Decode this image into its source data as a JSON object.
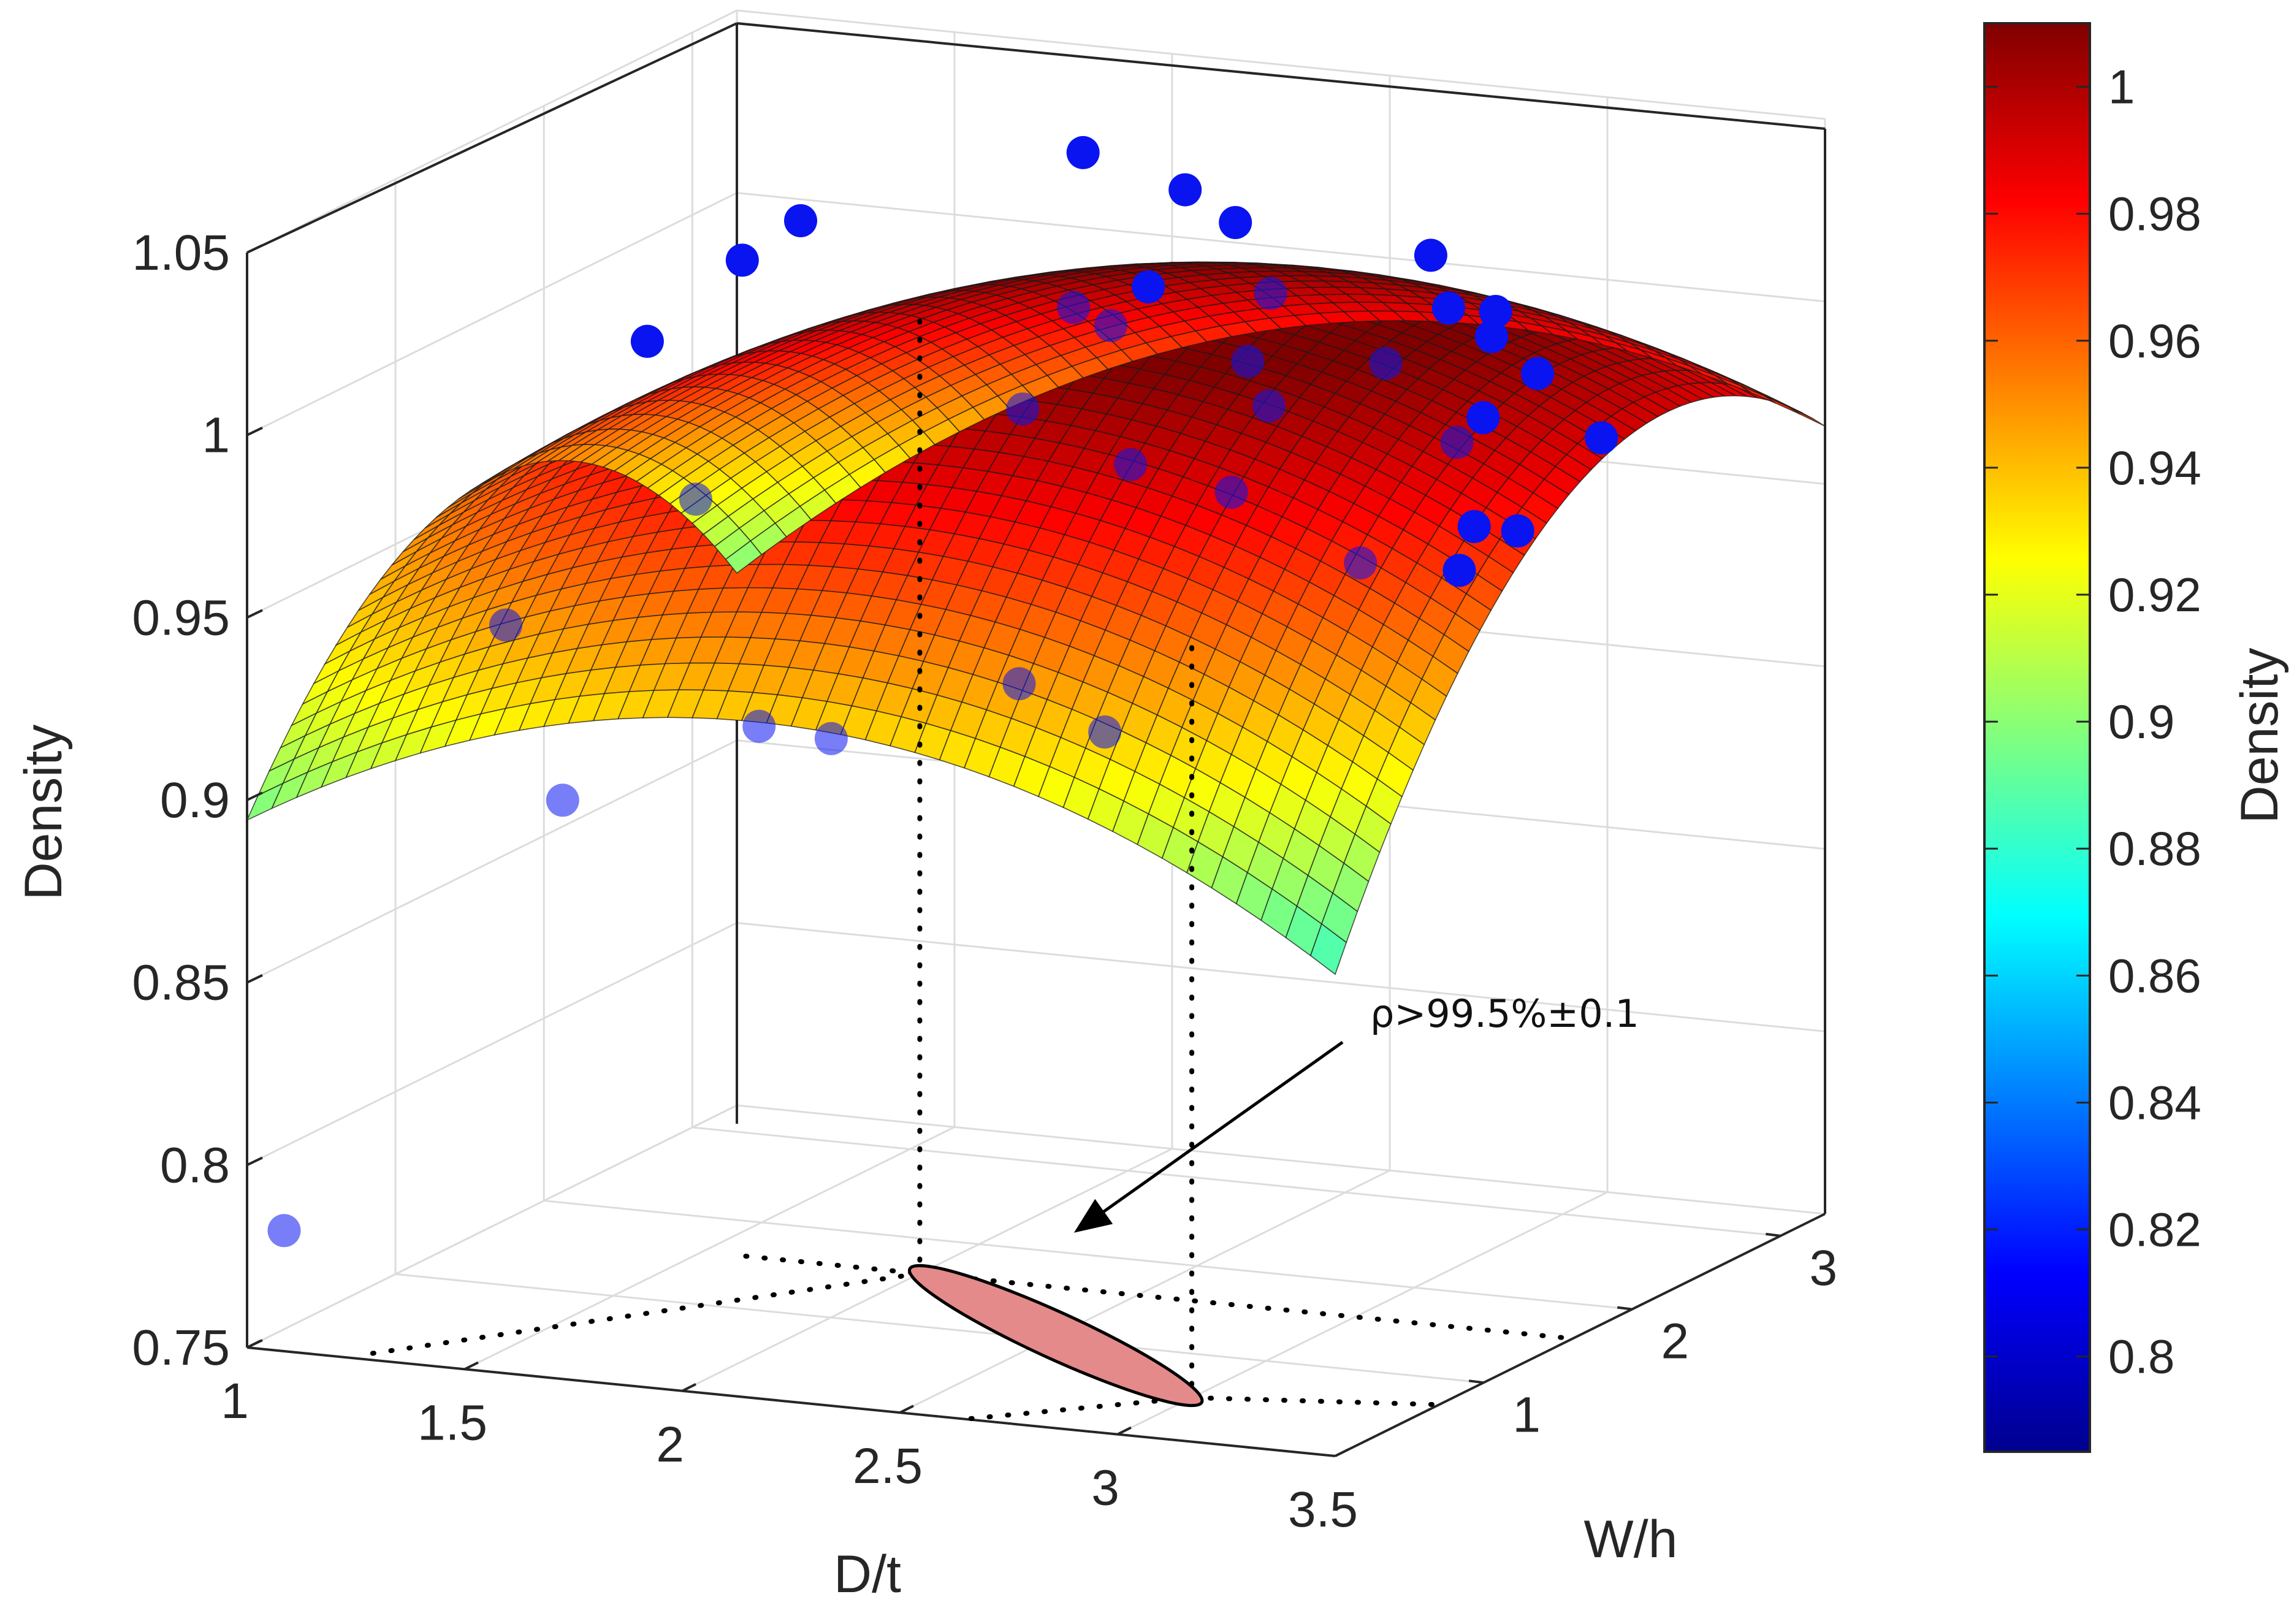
{
  "chart_data": {
    "type": "surface3d",
    "title": "",
    "xlabel": "D/t",
    "ylabel": "W/h",
    "zlabel": "Density",
    "xlim": [
      1,
      3.5
    ],
    "ylim": [
      0,
      3.3
    ],
    "zlim": [
      0.75,
      1.05
    ],
    "x_ticks": [
      "1",
      "1.5",
      "2",
      "2.5",
      "3",
      "3.5"
    ],
    "y_ticks": [
      "1",
      "2",
      "3"
    ],
    "z_ticks": [
      "0.75",
      "0.8",
      "0.85",
      "0.9",
      "0.95",
      "1",
      "1.05"
    ],
    "colorbar": {
      "label": "Density",
      "colormap": "jet",
      "range": [
        0.785,
        1.01
      ],
      "ticks": [
        "0.8",
        "0.82",
        "0.84",
        "0.86",
        "0.88",
        "0.9",
        "0.92",
        "0.94",
        "0.96",
        "0.98",
        "1"
      ]
    },
    "surface": {
      "x_range": [
        1,
        3.5
      ],
      "y_range": [
        0,
        3.3
      ],
      "model": "quadratic response surface",
      "peak": {
        "x": 2.5,
        "y": 2.0,
        "z": 1.02
      }
    },
    "points": [
      {
        "x": 2.48,
        "y": 1.98,
        "z": 1.045
      },
      {
        "x": 2.0,
        "y": 2.7,
        "z": 1.035
      },
      {
        "x": 3.3,
        "y": 1.35,
        "z": 1.035
      },
      {
        "x": 3.45,
        "y": 1.2,
        "z": 1.032
      },
      {
        "x": 3.55,
        "y": 0.85,
        "z": 1.018
      },
      {
        "x": 1.3,
        "y": 2.85,
        "z": 1.005
      },
      {
        "x": 1.2,
        "y": 2.75,
        "z": 0.995
      },
      {
        "x": 1.05,
        "y": 2.55,
        "z": 0.975
      },
      {
        "x": 2.2,
        "y": 2.3,
        "z": 0.998
      },
      {
        "x": 2.1,
        "y": 2.0,
        "z": 0.98
      },
      {
        "x": 2.15,
        "y": 2.7,
        "z": 1.0
      },
      {
        "x": 2.7,
        "y": 1.9,
        "z": 0.99
      },
      {
        "x": 2.45,
        "y": 1.7,
        "z": 0.975
      },
      {
        "x": 2.75,
        "y": 1.5,
        "z": 0.975
      },
      {
        "x": 3.2,
        "y": 1.05,
        "z": 0.97
      },
      {
        "x": 3.7,
        "y": 0.35,
        "z": 1.0
      },
      {
        "x": 3.8,
        "y": 0.35,
        "z": 1.0
      },
      {
        "x": 3.7,
        "y": 0.25,
        "z": 0.99
      },
      {
        "x": 1.4,
        "y": 1.85,
        "z": 0.95
      },
      {
        "x": 1.1,
        "y": 1.45,
        "z": 0.92
      },
      {
        "x": 1.35,
        "y": 1.1,
        "z": 0.882
      },
      {
        "x": 1.75,
        "y": 1.25,
        "z": 0.904
      },
      {
        "x": 1.95,
        "y": 1.15,
        "z": 0.905
      },
      {
        "x": 2.45,
        "y": 0.95,
        "z": 0.93
      },
      {
        "x": 2.8,
        "y": 0.5,
        "z": 0.93
      },
      {
        "x": 1.0,
        "y": 0.25,
        "z": 0.777
      },
      {
        "x": 2.85,
        "y": 2.55,
        "z": 1.02
      },
      {
        "x": 3.05,
        "y": 2.4,
        "z": 1.01
      },
      {
        "x": 2.55,
        "y": 2.35,
        "z": 1.01
      },
      {
        "x": 3.3,
        "y": 1.95,
        "z": 1.005
      },
      {
        "x": 2.35,
        "y": 2.7,
        "z": 1.02
      },
      {
        "x": 2.6,
        "y": 2.05,
        "z": 0.998
      },
      {
        "x": 3.2,
        "y": 1.7,
        "z": 0.99
      },
      {
        "x": 3.6,
        "y": 1.5,
        "z": 1.0
      },
      {
        "x": 2.2,
        "y": 2.05,
        "z": 1.008
      },
      {
        "x": 2.9,
        "y": 2.1,
        "z": 1.0
      }
    ],
    "region": {
      "shape": "ellipse",
      "x_range": [
        2.0,
        3.0
      ],
      "y_range": [
        0.5,
        1.6
      ],
      "fill": "#e48a8a",
      "stroke": "#000000"
    },
    "annotation": "ρ>99.5%±0.1"
  }
}
